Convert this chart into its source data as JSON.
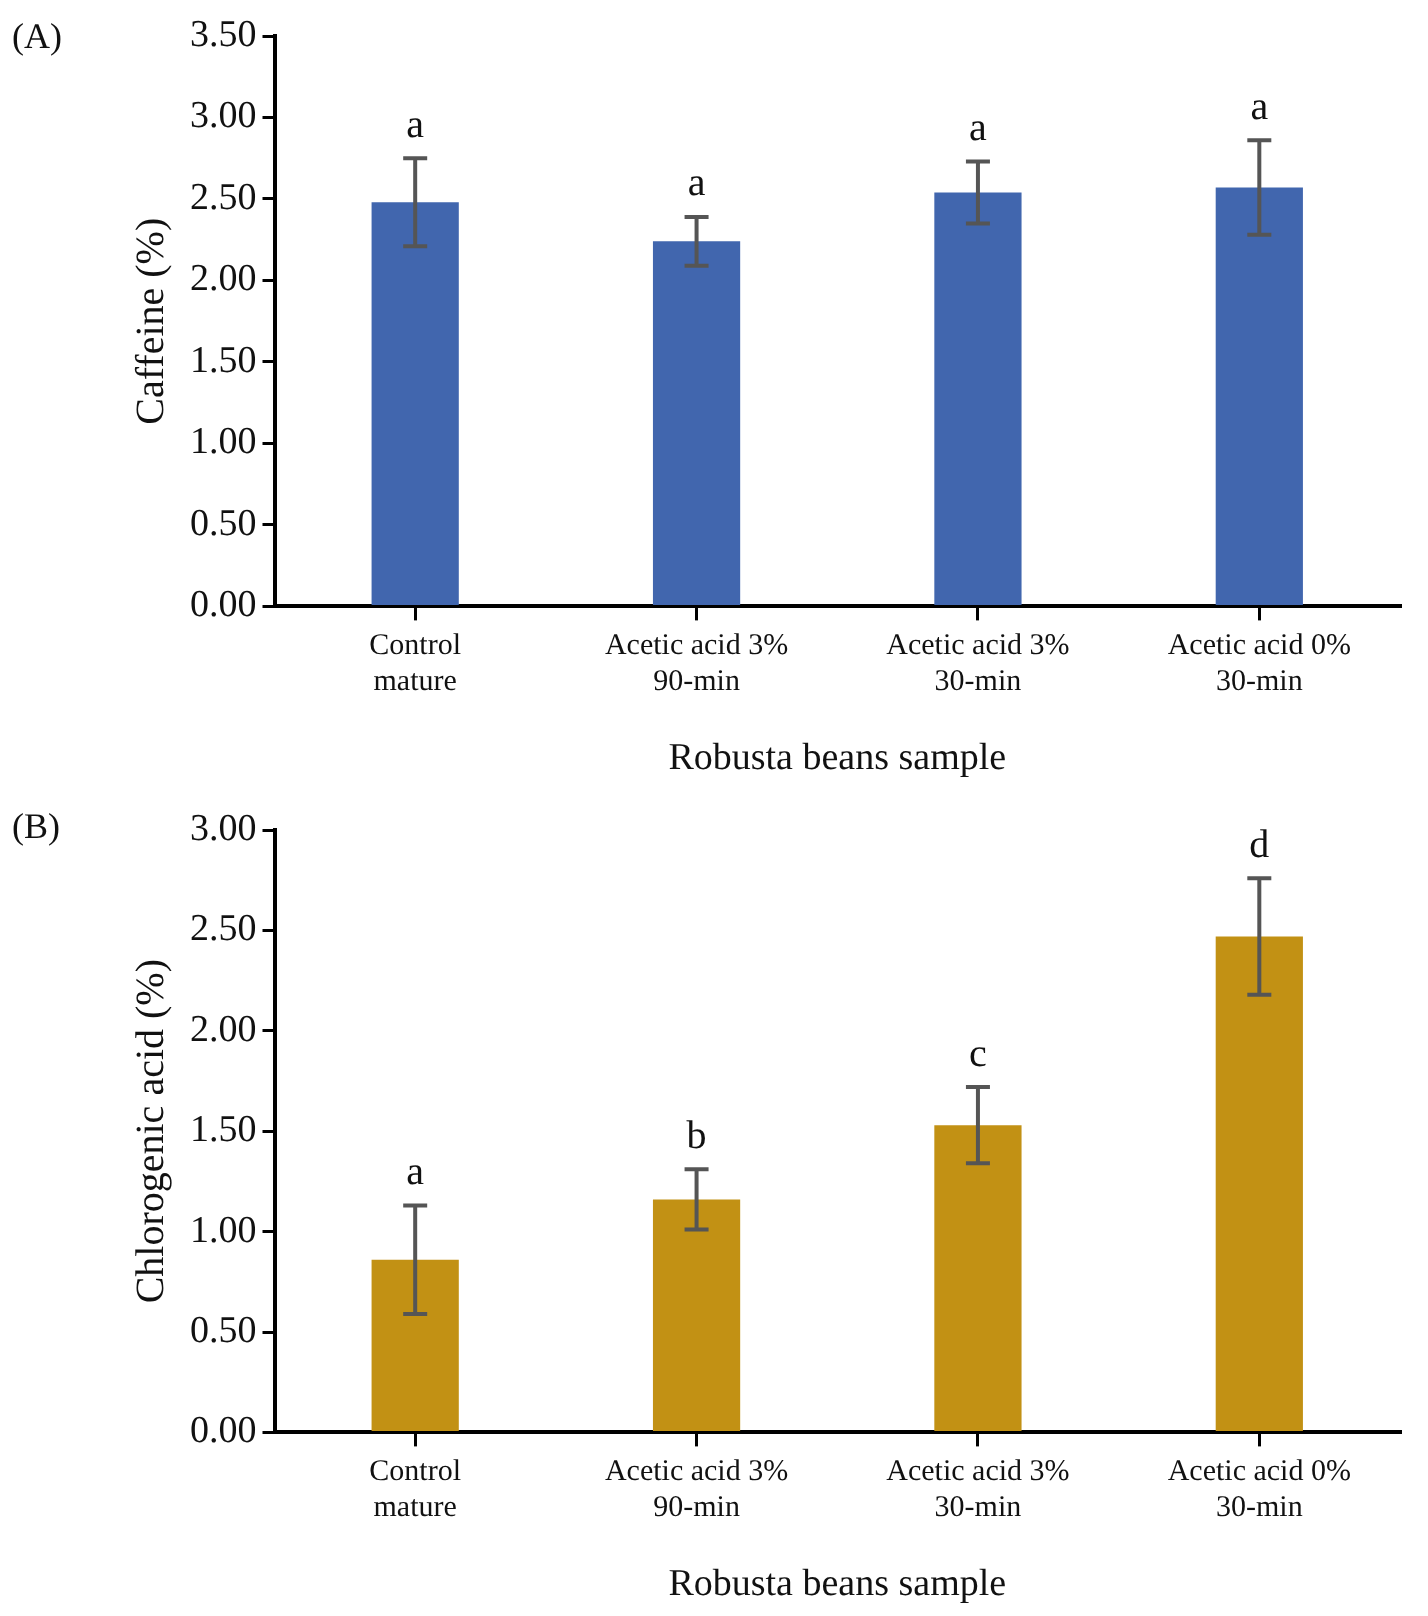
{
  "chart_data": [
    {
      "type": "bar",
      "title": "(A)",
      "xlabel": "Robusta beans sample",
      "ylabel": "Caffeine (%)",
      "categories": [
        "Control mature",
        "Acetic acid 3% 90-min",
        "Acetic acid 3% 30-min",
        "Acetic acid 0% 30-min"
      ],
      "values": [
        2.48,
        2.24,
        2.54,
        2.57
      ],
      "errors": [
        0.27,
        0.15,
        0.19,
        0.29
      ],
      "color": "#4166ae",
      "ylim": [
        0,
        3.5
      ],
      "yticks": [
        {
          "value": 0,
          "label": "0.00"
        },
        {
          "value": 0.5,
          "label": "0.50"
        },
        {
          "value": 1,
          "label": "1.00"
        },
        {
          "value": 1.5,
          "label": "1.50"
        },
        {
          "value": 2,
          "label": "2.00"
        },
        {
          "value": 2.5,
          "label": "2.50"
        },
        {
          "value": 3,
          "label": "3.00"
        },
        {
          "value": 3.5,
          "label": "3.50"
        }
      ],
      "annotations": [
        {
          "text": "a",
          "x": "Control mature",
          "y": 2.75
        },
        {
          "text": "a",
          "x": "Acetic acid 3% 90-min",
          "y": 2.39
        },
        {
          "text": "a",
          "x": "Acetic acid 3% 30-min",
          "y": 2.73
        },
        {
          "text": "a",
          "x": "Acetic acid 0% 30-min",
          "y": 2.86
        }
      ],
      "grid": false,
      "legend": false
    },
    {
      "type": "bar",
      "title": "(B)",
      "xlabel": "Robusta beans sample",
      "ylabel": "Chlorogenic acid (%)",
      "categories": [
        "Control mature",
        "Acetic acid 3% 90-min",
        "Acetic acid 3% 30-min",
        "Acetic acid 0% 30-min"
      ],
      "values": [
        0.86,
        1.16,
        1.53,
        2.47
      ],
      "errors": [
        0.27,
        0.15,
        0.19,
        0.29
      ],
      "color": "#c29114",
      "ylim": [
        0,
        3
      ],
      "yticks": [
        {
          "value": 0,
          "label": "0.00"
        },
        {
          "value": 0.5,
          "label": "0.50"
        },
        {
          "value": 1,
          "label": "1.00"
        },
        {
          "value": 1.5,
          "label": "1.50"
        },
        {
          "value": 2,
          "label": "2.00"
        },
        {
          "value": 2.5,
          "label": "2.50"
        },
        {
          "value": 3,
          "label": "3.00"
        }
      ],
      "annotations": [
        {
          "text": "a",
          "x": "Control mature",
          "y": 1.13
        },
        {
          "text": "b",
          "x": "Acetic acid 3% 90-min",
          "y": 1.31
        },
        {
          "text": "c",
          "x": "Acetic acid 3% 30-min",
          "y": 1.72
        },
        {
          "text": "d",
          "x": "Acetic acid 0% 30-min",
          "y": 2.76
        }
      ],
      "grid": false,
      "legend": false
    }
  ]
}
